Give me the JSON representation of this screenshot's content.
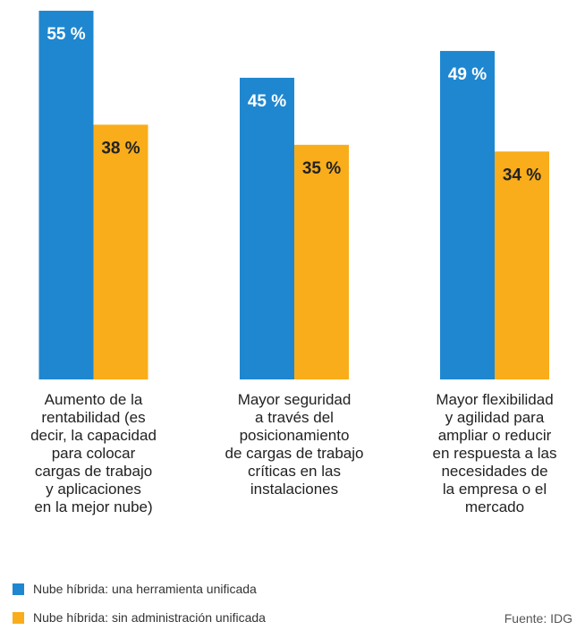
{
  "chart_data": {
    "type": "bar",
    "categories": [
      "Aumento de la\nrentabilidad (es\ndecir, la capacidad\npara colocar\ncargas de trabajo\ny aplicaciones\nen la mejor nube)",
      "Mayor seguridad\na través del\nposicionamiento\nde cargas de trabajo\ncríticas en las\ninstalaciones",
      "Mayor flexibilidad\ny agilidad para\nampliar o reducir\nen respuesta a las\nnecesidades de\nla empresa o el\nmercado"
    ],
    "series": [
      {
        "name": "Nube híbrida: una herramienta unificada",
        "color": "#1f87d0",
        "values": [
          55,
          45,
          49
        ],
        "value_labels": [
          "55 %",
          "45 %",
          "49 %"
        ]
      },
      {
        "name": "Nube híbrida: sin administración unificada",
        "color": "#f9ad1b",
        "values": [
          38,
          35,
          34
        ],
        "value_labels": [
          "38 %",
          "35 %",
          "34 %"
        ]
      }
    ],
    "source": "Fuente: IDG"
  }
}
